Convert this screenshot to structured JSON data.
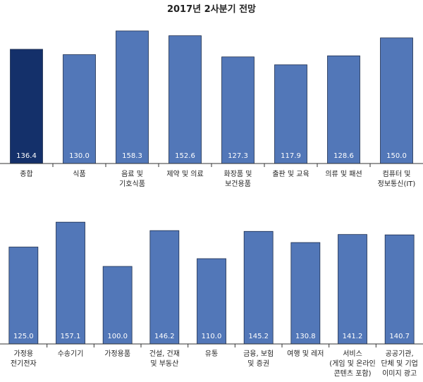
{
  "title": "2017년 2사분기 전망",
  "colors": {
    "highlight": "#14306a",
    "bar": "#5277b8",
    "axis": "#333333"
  },
  "chart_data": [
    {
      "type": "bar",
      "categories": [
        [
          "종합"
        ],
        [
          "식품"
        ],
        [
          "음료 및",
          "기호식품"
        ],
        [
          "제약 및 의료"
        ],
        [
          "화장품 및",
          "보건용품"
        ],
        [
          "출판 및 교육"
        ],
        [
          "의류 및 패션"
        ],
        [
          "컴퓨터 및",
          "정보통신(IT)"
        ]
      ],
      "values": [
        136.4,
        130.0,
        158.3,
        152.6,
        127.3,
        117.9,
        128.6,
        150.0
      ],
      "value_labels": [
        "136.4",
        "130.0",
        "158.3",
        "152.6",
        "127.3",
        "117.9",
        "128.6",
        "150.0"
      ],
      "highlight_index": 0,
      "ylim": [
        0,
        170
      ]
    },
    {
      "type": "bar",
      "categories": [
        [
          "가정용",
          "전기전자"
        ],
        [
          "수송기기"
        ],
        [
          "가정용품"
        ],
        [
          "건설, 건재",
          "및 부동산"
        ],
        [
          "유통"
        ],
        [
          "금융, 보험",
          "및 증권"
        ],
        [
          "여행 및 레저"
        ],
        [
          "서비스",
          "(게임 및 온라인",
          "콘텐츠 포함)"
        ],
        [
          "공공기관,",
          "단체 및 기업",
          "이미지 광고"
        ]
      ],
      "values": [
        125.0,
        157.1,
        100.0,
        146.2,
        110.0,
        145.2,
        130.8,
        141.2,
        140.7
      ],
      "value_labels": [
        "125.0",
        "157.1",
        "100.0",
        "146.2",
        "110.0",
        "145.2",
        "130.8",
        "141.2",
        "140.7"
      ],
      "ylim": [
        0,
        170
      ]
    }
  ]
}
